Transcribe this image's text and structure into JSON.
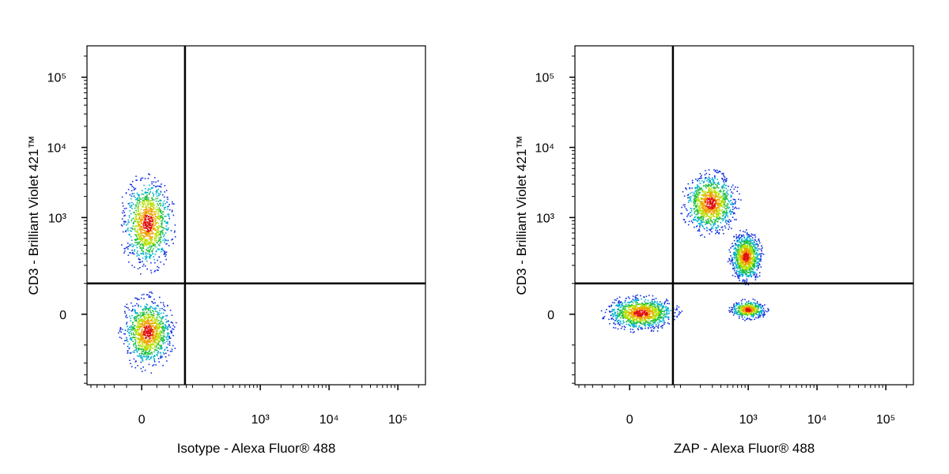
{
  "chart_data": [
    {
      "type": "density",
      "xlabel": "Isotype - Alexa Fluor® 488",
      "ylabel": "CD3 - Brilliant Violet 421™",
      "scale": "biexponential",
      "xlim": [
        -115,
        252000
      ],
      "ylim": [
        -420,
        280000
      ],
      "xticks": [
        0,
        {
          "value": 1000,
          "label": "10³"
        },
        {
          "value": 10000,
          "label": "10⁴"
        },
        {
          "value": 100000,
          "label": "10⁵"
        }
      ],
      "yticks": [
        0,
        {
          "value": 1000,
          "label": "10³"
        },
        {
          "value": 10000,
          "label": "10⁴"
        },
        {
          "value": 100000,
          "label": "10⁵"
        }
      ],
      "xminorticks": [
        -100,
        -80,
        -60,
        -40,
        -20,
        20,
        40,
        60,
        80,
        100,
        200,
        300,
        400,
        500,
        600,
        700,
        800,
        900,
        2000,
        3000,
        4000,
        5000,
        6000,
        7000,
        8000,
        9000,
        20000,
        30000,
        40000,
        50000,
        60000,
        70000,
        80000,
        90000,
        200000
      ],
      "yminorticks": [
        -400,
        -300,
        -200,
        -100,
        100,
        200,
        300,
        400,
        500,
        600,
        700,
        800,
        900,
        2000,
        3000,
        4000,
        5000,
        6000,
        7000,
        8000,
        9000,
        20000,
        30000,
        40000,
        50000,
        60000,
        70000,
        80000,
        90000,
        200000
      ],
      "gates": {
        "x": 76,
        "y": 100
      },
      "populations": [
        {
          "xrange": [
            -32,
            53
          ],
          "yrange": [
            150,
            4500
          ]
        },
        {
          "xrange": [
            -32,
            53
          ],
          "yrange": [
            -265,
            66
          ]
        }
      ]
    },
    {
      "type": "density",
      "xlabel": "ZAP - Alexa Fluor® 488",
      "ylabel": "CD3 - Brilliant Violet 421™",
      "scale": "biexponential",
      "xlim": [
        -115,
        252000
      ],
      "ylim": [
        -420,
        280000
      ],
      "xticks": [
        0,
        {
          "value": 1000,
          "label": "10³"
        },
        {
          "value": 10000,
          "label": "10⁴"
        },
        {
          "value": 100000,
          "label": "10⁵"
        }
      ],
      "yticks": [
        0,
        {
          "value": 1000,
          "label": "10³"
        },
        {
          "value": 10000,
          "label": "10⁴"
        },
        {
          "value": 100000,
          "label": "10⁵"
        }
      ],
      "xminorticks": [
        -100,
        -80,
        -60,
        -40,
        -20,
        20,
        40,
        60,
        80,
        100,
        200,
        300,
        400,
        500,
        600,
        700,
        800,
        900,
        2000,
        3000,
        4000,
        5000,
        6000,
        7000,
        8000,
        9000,
        20000,
        30000,
        40000,
        50000,
        60000,
        70000,
        80000,
        90000,
        200000
      ],
      "yminorticks": [
        -400,
        -300,
        -200,
        -100,
        100,
        200,
        300,
        400,
        500,
        600,
        700,
        800,
        900,
        2000,
        3000,
        4000,
        5000,
        6000,
        7000,
        8000,
        9000,
        20000,
        30000,
        40000,
        50000,
        60000,
        70000,
        80000,
        90000,
        200000
      ],
      "gates": {
        "x": 76,
        "y": 100
      },
      "populations": [
        {
          "xrange": [
            -42,
            99
          ],
          "yrange": [
            -50,
            61
          ]
        },
        {
          "xrange": [
            99,
            748
          ],
          "yrange": [
            530,
            5000
          ]
        },
        {
          "xrange": [
            503,
            1650
          ],
          "yrange": [
            97,
            690
          ]
        },
        {
          "xrange": [
            503,
            1900
          ],
          "yrange": [
            -15,
            45
          ]
        }
      ]
    }
  ]
}
